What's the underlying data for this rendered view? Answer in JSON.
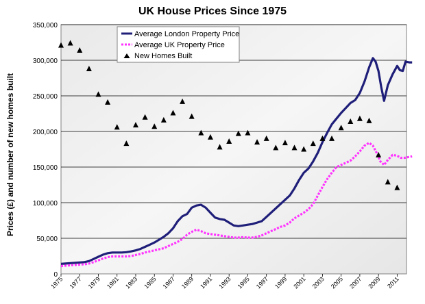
{
  "chart_data": {
    "type": "line",
    "title": "UK House Prices Since 1975",
    "xlabel": "",
    "ylabel": "Prices (£) and number of new homes built",
    "ylim": [
      0,
      350000
    ],
    "yticks": [
      "0",
      "50,000",
      "100,000",
      "150,000",
      "200,000",
      "250,000",
      "300,000",
      "350,000"
    ],
    "xlim": [
      1975,
      2012
    ],
    "xticks": [
      "1975",
      "1977",
      "1979",
      "1981",
      "1983",
      "1985",
      "1987",
      "1989",
      "1991",
      "1993",
      "1995",
      "1997",
      "1999",
      "2001",
      "2003",
      "2005",
      "2007",
      "2009",
      "2011"
    ],
    "grid": true,
    "legend_position": "top-left",
    "series": [
      {
        "name": "Average London Property Price",
        "style": "solid-line",
        "color": "#1f1f7a",
        "points": [
          [
            1975.0,
            14000
          ],
          [
            1975.5,
            14500
          ],
          [
            1976.0,
            15000
          ],
          [
            1976.5,
            15500
          ],
          [
            1977.0,
            16000
          ],
          [
            1977.5,
            16500
          ],
          [
            1978.0,
            18000
          ],
          [
            1978.5,
            21000
          ],
          [
            1979.0,
            24000
          ],
          [
            1979.5,
            27000
          ],
          [
            1980.0,
            29000
          ],
          [
            1980.5,
            30000
          ],
          [
            1981.0,
            30000
          ],
          [
            1981.5,
            30000
          ],
          [
            1982.0,
            30500
          ],
          [
            1982.5,
            31500
          ],
          [
            1983.0,
            33000
          ],
          [
            1983.5,
            35000
          ],
          [
            1984.0,
            38000
          ],
          [
            1984.5,
            41000
          ],
          [
            1985.0,
            44000
          ],
          [
            1985.5,
            48000
          ],
          [
            1986.0,
            52000
          ],
          [
            1986.5,
            57000
          ],
          [
            1987.0,
            64000
          ],
          [
            1987.5,
            74000
          ],
          [
            1988.0,
            81000
          ],
          [
            1988.5,
            84000
          ],
          [
            1989.0,
            93000
          ],
          [
            1989.5,
            96000
          ],
          [
            1990.0,
            97000
          ],
          [
            1990.5,
            93000
          ],
          [
            1991.0,
            86000
          ],
          [
            1991.5,
            79000
          ],
          [
            1992.0,
            77000
          ],
          [
            1992.5,
            76000
          ],
          [
            1993.0,
            72000
          ],
          [
            1993.5,
            68000
          ],
          [
            1994.0,
            67000
          ],
          [
            1994.5,
            68000
          ],
          [
            1995.0,
            69000
          ],
          [
            1995.5,
            70000
          ],
          [
            1996.0,
            72000
          ],
          [
            1996.5,
            74000
          ],
          [
            1997.0,
            80000
          ],
          [
            1997.5,
            86000
          ],
          [
            1998.0,
            92000
          ],
          [
            1998.5,
            98000
          ],
          [
            1999.0,
            104000
          ],
          [
            1999.5,
            110000
          ],
          [
            2000.0,
            120000
          ],
          [
            2000.5,
            132000
          ],
          [
            2001.0,
            142000
          ],
          [
            2001.5,
            148000
          ],
          [
            2002.0,
            158000
          ],
          [
            2002.5,
            170000
          ],
          [
            2003.0,
            185000
          ],
          [
            2003.5,
            198000
          ],
          [
            2004.0,
            210000
          ],
          [
            2004.5,
            218000
          ],
          [
            2005.0,
            226000
          ],
          [
            2005.5,
            233000
          ],
          [
            2006.0,
            240000
          ],
          [
            2006.5,
            244000
          ],
          [
            2007.0,
            254000
          ],
          [
            2007.5,
            270000
          ],
          [
            2008.0,
            290000
          ],
          [
            2008.4,
            303000
          ],
          [
            2008.7,
            298000
          ],
          [
            2009.0,
            285000
          ],
          [
            2009.3,
            262000
          ],
          [
            2009.6,
            243000
          ],
          [
            2010.0,
            265000
          ],
          [
            2010.5,
            280000
          ],
          [
            2011.0,
            292000
          ],
          [
            2011.3,
            286000
          ],
          [
            2011.6,
            285000
          ],
          [
            2011.9,
            298000
          ],
          [
            2012.3,
            297000
          ],
          [
            2012.6,
            297000
          ]
        ]
      },
      {
        "name": "Average UK Property Price",
        "style": "dashed-line",
        "color": "#ff33ff",
        "points": [
          [
            1975.0,
            11000
          ],
          [
            1975.5,
            11500
          ],
          [
            1976.0,
            12000
          ],
          [
            1976.5,
            12500
          ],
          [
            1977.0,
            13000
          ],
          [
            1977.5,
            13500
          ],
          [
            1978.0,
            14500
          ],
          [
            1978.5,
            16500
          ],
          [
            1979.0,
            19000
          ],
          [
            1979.5,
            21500
          ],
          [
            1980.0,
            23500
          ],
          [
            1980.5,
            24500
          ],
          [
            1981.0,
            24500
          ],
          [
            1981.5,
            24500
          ],
          [
            1982.0,
            24500
          ],
          [
            1982.5,
            25000
          ],
          [
            1983.0,
            26500
          ],
          [
            1983.5,
            28000
          ],
          [
            1984.0,
            30000
          ],
          [
            1984.5,
            31500
          ],
          [
            1985.0,
            33000
          ],
          [
            1985.5,
            34500
          ],
          [
            1986.0,
            36000
          ],
          [
            1986.5,
            39000
          ],
          [
            1987.0,
            42000
          ],
          [
            1987.5,
            45000
          ],
          [
            1988.0,
            49000
          ],
          [
            1988.5,
            55000
          ],
          [
            1989.0,
            59000
          ],
          [
            1989.5,
            62000
          ],
          [
            1990.0,
            60000
          ],
          [
            1990.5,
            57000
          ],
          [
            1991.0,
            56000
          ],
          [
            1991.5,
            55000
          ],
          [
            1992.0,
            54000
          ],
          [
            1992.5,
            53000
          ],
          [
            1993.0,
            52000
          ],
          [
            1993.5,
            51000
          ],
          [
            1994.0,
            51000
          ],
          [
            1994.5,
            51500
          ],
          [
            1995.0,
            51000
          ],
          [
            1995.5,
            51000
          ],
          [
            1996.0,
            52000
          ],
          [
            1996.5,
            54000
          ],
          [
            1997.0,
            57000
          ],
          [
            1997.5,
            60000
          ],
          [
            1998.0,
            63000
          ],
          [
            1998.5,
            66000
          ],
          [
            1999.0,
            68000
          ],
          [
            1999.5,
            72000
          ],
          [
            2000.0,
            78000
          ],
          [
            2000.5,
            82000
          ],
          [
            2001.0,
            86000
          ],
          [
            2001.5,
            91000
          ],
          [
            2002.0,
            98000
          ],
          [
            2002.5,
            110000
          ],
          [
            2003.0,
            122000
          ],
          [
            2003.5,
            133000
          ],
          [
            2004.0,
            142000
          ],
          [
            2004.5,
            150000
          ],
          [
            2005.0,
            153000
          ],
          [
            2005.5,
            156000
          ],
          [
            2006.0,
            159000
          ],
          [
            2006.5,
            165000
          ],
          [
            2007.0,
            172000
          ],
          [
            2007.5,
            180000
          ],
          [
            2008.0,
            184000
          ],
          [
            2008.4,
            180000
          ],
          [
            2008.8,
            170000
          ],
          [
            2009.2,
            158000
          ],
          [
            2009.6,
            153000
          ],
          [
            2010.0,
            160000
          ],
          [
            2010.5,
            167000
          ],
          [
            2011.0,
            166000
          ],
          [
            2011.4,
            163000
          ],
          [
            2011.8,
            163000
          ],
          [
            2012.2,
            164000
          ],
          [
            2012.6,
            165000
          ]
        ]
      },
      {
        "name": "New Homes Built",
        "style": "triangle-markers",
        "color": "#000000",
        "points": [
          [
            1975,
            321000
          ],
          [
            1976,
            324000
          ],
          [
            1977,
            314000
          ],
          [
            1978,
            288000
          ],
          [
            1979,
            252000
          ],
          [
            1980,
            241000
          ],
          [
            1981,
            206000
          ],
          [
            1982,
            183000
          ],
          [
            1983,
            209000
          ],
          [
            1984,
            220000
          ],
          [
            1985,
            207000
          ],
          [
            1986,
            216000
          ],
          [
            1987,
            226000
          ],
          [
            1988,
            242000
          ],
          [
            1989,
            221000
          ],
          [
            1990,
            198000
          ],
          [
            1991,
            192000
          ],
          [
            1992,
            178000
          ],
          [
            1993,
            186000
          ],
          [
            1994,
            197000
          ],
          [
            1995,
            198000
          ],
          [
            1996,
            185000
          ],
          [
            1997,
            190000
          ],
          [
            1998,
            177000
          ],
          [
            1999,
            184000
          ],
          [
            2000,
            177000
          ],
          [
            2001,
            175000
          ],
          [
            2002,
            183000
          ],
          [
            2003,
            190000
          ],
          [
            2004,
            190000
          ],
          [
            2005,
            205000
          ],
          [
            2006,
            214000
          ],
          [
            2007,
            218000
          ],
          [
            2008,
            215000
          ],
          [
            2009,
            167000
          ],
          [
            2010,
            129000
          ],
          [
            2011,
            121000
          ]
        ]
      }
    ]
  }
}
